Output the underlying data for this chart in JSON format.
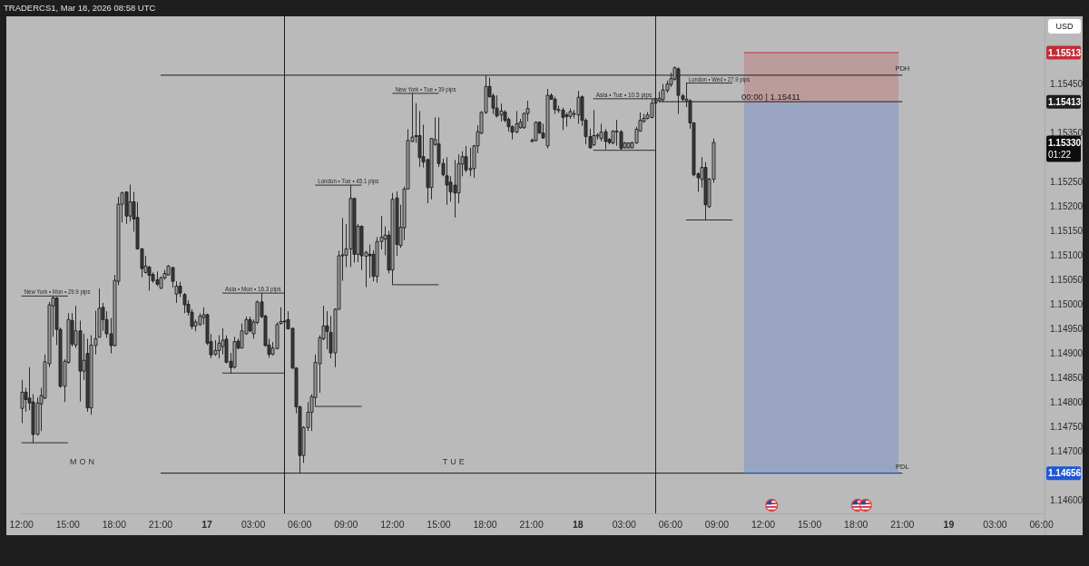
{
  "chart_data": {
    "type": "candlestick",
    "title": "TRADERCS1, Mar 18, 2026 08:58 UTC",
    "ylabel": "USD",
    "xlim": [
      "2026-03-16T11:54",
      "2026-03-19T06:12"
    ],
    "ylim": [
      1.14574,
      1.15587
    ],
    "xticks": [
      {
        "value": "2026-03-16T12:00",
        "label": "12:00"
      },
      {
        "value": "2026-03-16T15:00",
        "label": "15:00"
      },
      {
        "value": "2026-03-16T18:00",
        "label": "18:00"
      },
      {
        "value": "2026-03-16T21:00",
        "label": "21:00"
      },
      {
        "value": "2026-03-17T00:00",
        "label": "17"
      },
      {
        "value": "2026-03-17T03:00",
        "label": "03:00"
      },
      {
        "value": "2026-03-17T06:00",
        "label": "06:00"
      },
      {
        "value": "2026-03-17T09:00",
        "label": "09:00"
      },
      {
        "value": "2026-03-17T12:00",
        "label": "12:00"
      },
      {
        "value": "2026-03-17T15:00",
        "label": "15:00"
      },
      {
        "value": "2026-03-17T18:00",
        "label": "18:00"
      },
      {
        "value": "2026-03-17T21:00",
        "label": "21:00"
      },
      {
        "value": "2026-03-18T00:00",
        "label": "18"
      },
      {
        "value": "2026-03-18T03:00",
        "label": "03:00"
      },
      {
        "value": "2026-03-18T06:00",
        "label": "06:00"
      },
      {
        "value": "2026-03-18T09:00",
        "label": "09:00"
      },
      {
        "value": "2026-03-18T12:00",
        "label": "12:00"
      },
      {
        "value": "2026-03-18T15:00",
        "label": "15:00"
      },
      {
        "value": "2026-03-18T18:00",
        "label": "18:00"
      },
      {
        "value": "2026-03-18T21:00",
        "label": "21:00"
      },
      {
        "value": "2026-03-19T00:00",
        "label": "19"
      },
      {
        "value": "2026-03-19T03:00",
        "label": "03:00"
      },
      {
        "value": "2026-03-19T06:00",
        "label": "06:00"
      }
    ],
    "yticks": [
      {
        "value": 1.146,
        "label": "1.14600"
      },
      {
        "value": 1.147,
        "label": "1.14700"
      },
      {
        "value": 1.1475,
        "label": "1.14750"
      },
      {
        "value": 1.148,
        "label": "1.14800"
      },
      {
        "value": 1.1485,
        "label": "1.14850"
      },
      {
        "value": 1.149,
        "label": "1.14900"
      },
      {
        "value": 1.1495,
        "label": "1.14950"
      },
      {
        "value": 1.15,
        "label": "1.15000"
      },
      {
        "value": 1.1505,
        "label": "1.15050"
      },
      {
        "value": 1.151,
        "label": "1.15100"
      },
      {
        "value": 1.1515,
        "label": "1.15150"
      },
      {
        "value": 1.152,
        "label": "1.15200"
      },
      {
        "value": 1.1525,
        "label": "1.15250"
      },
      {
        "value": 1.1535,
        "label": "1.15350"
      },
      {
        "value": 1.1545,
        "label": "1.15450"
      }
    ],
    "series": [
      {
        "type": "line",
        "name": "New York • Mon • 29.9 pips",
        "color": "#2e2e2e",
        "x": [
          "2026-03-16T12:00",
          "2026-03-16T15:00"
        ],
        "values": [
          1.15017,
          1.15017
        ]
      },
      {
        "type": "line",
        "color": "#2e2e2e",
        "x": [
          "2026-03-16T12:00",
          "2026-03-16T15:00"
        ],
        "values": [
          1.14718,
          1.14718
        ]
      },
      {
        "type": "line",
        "name": "Asia • Mon • 16.3 pips",
        "color": "#2e2e2e",
        "x": [
          "2026-03-17T01:00",
          "2026-03-17T05:00"
        ],
        "values": [
          1.15023,
          1.15023
        ]
      },
      {
        "type": "line",
        "color": "#2e2e2e",
        "x": [
          "2026-03-17T01:00",
          "2026-03-17T05:00"
        ],
        "values": [
          1.1486,
          1.1486
        ]
      },
      {
        "type": "line",
        "name": "London • Tue • 45.1 pips",
        "color": "#2e2e2e",
        "x": [
          "2026-03-17T07:00",
          "2026-03-17T10:00"
        ],
        "values": [
          1.15243,
          1.15243
        ]
      },
      {
        "type": "line",
        "color": "#2e2e2e",
        "x": [
          "2026-03-17T07:00",
          "2026-03-17T10:00"
        ],
        "values": [
          1.14792,
          1.14792
        ]
      },
      {
        "type": "line",
        "name": "New York • Tue • 39 pips",
        "color": "#2e2e2e",
        "x": [
          "2026-03-17T12:00",
          "2026-03-17T15:00"
        ],
        "values": [
          1.1543,
          1.1543
        ]
      },
      {
        "type": "line",
        "color": "#2e2e2e",
        "x": [
          "2026-03-17T12:00",
          "2026-03-17T15:00"
        ],
        "values": [
          1.1504,
          1.1504
        ]
      },
      {
        "type": "line",
        "name": "Asia • Tue • 10.5 pips",
        "color": "#2e2e2e",
        "x": [
          "2026-03-18T01:00",
          "2026-03-18T05:00"
        ],
        "values": [
          1.15419,
          1.15419
        ]
      },
      {
        "type": "line",
        "color": "#2e2e2e",
        "x": [
          "2026-03-18T01:00",
          "2026-03-18T05:00"
        ],
        "values": [
          1.15314,
          1.15314
        ]
      },
      {
        "type": "line",
        "name": "London • Wed • 27.9 pips",
        "color": "#2e2e2e",
        "x": [
          "2026-03-18T07:00",
          "2026-03-18T10:00"
        ],
        "values": [
          1.15451,
          1.15451
        ]
      },
      {
        "type": "line",
        "color": "#2e2e2e",
        "x": [
          "2026-03-18T07:00",
          "2026-03-18T10:00"
        ],
        "values": [
          1.15172,
          1.15172
        ]
      },
      {
        "type": "line",
        "name": "PDH",
        "color": "#1e1e1e",
        "x": [
          "2026-03-16T21:00",
          "2026-03-18T21:00"
        ],
        "values": [
          1.15467,
          1.15467
        ]
      },
      {
        "type": "line",
        "name": "PDL",
        "color": "#1e1e1e",
        "x": [
          "2026-03-16T21:00",
          "2026-03-18T21:00"
        ],
        "values": [
          1.14656,
          1.14656
        ]
      },
      {
        "type": "line",
        "color": "#c42b38",
        "x": [
          "2026-03-18T10:45",
          "2026-03-18T20:45"
        ],
        "values": [
          1.15513,
          1.15513
        ],
        "lower": [
          1.15411,
          1.15411
        ],
        "upper": [
          1.15513,
          1.15513
        ]
      },
      {
        "type": "line",
        "color": "#1f56d6",
        "x": [
          "2026-03-18T10:45",
          "2026-03-18T20:45"
        ],
        "values": [
          1.14656,
          1.14656
        ],
        "lower": [
          1.14656,
          1.14656
        ],
        "upper": [
          1.15411,
          1.15411
        ]
      },
      {
        "type": "line",
        "color": "#1e1e1e",
        "x": [
          "2026-03-18T05:15",
          "2026-03-18T21:00"
        ],
        "values": [
          1.15413,
          1.15413
        ]
      },
      {
        "color": "#1c1c1c",
        "x": [
          "2026-03-16T12:00",
          "2026-03-16T12:15",
          "2026-03-16T12:30",
          "2026-03-16T12:45",
          "2026-03-16T13:00",
          "2026-03-16T13:15",
          "2026-03-16T13:30",
          "2026-03-16T13:45",
          "2026-03-16T14:00",
          "2026-03-16T14:15",
          "2026-03-16T14:30",
          "2026-03-16T14:45",
          "2026-03-16T15:00",
          "2026-03-16T15:15",
          "2026-03-16T15:30",
          "2026-03-16T15:45",
          "2026-03-16T16:00",
          "2026-03-16T16:15",
          "2026-03-16T16:30",
          "2026-03-16T16:45",
          "2026-03-16T17:00",
          "2026-03-16T17:15",
          "2026-03-16T17:30",
          "2026-03-16T17:45",
          "2026-03-16T18:00",
          "2026-03-16T18:15",
          "2026-03-16T18:30",
          "2026-03-16T18:45",
          "2026-03-16T19:00",
          "2026-03-16T19:15",
          "2026-03-16T19:30",
          "2026-03-16T19:45",
          "2026-03-16T20:00",
          "2026-03-16T20:15",
          "2026-03-16T20:30",
          "2026-03-16T20:45",
          "2026-03-16T21:00",
          "2026-03-16T21:15",
          "2026-03-16T21:30",
          "2026-03-16T21:45",
          "2026-03-16T22:00",
          "2026-03-16T22:15",
          "2026-03-16T22:30",
          "2026-03-16T22:45",
          "2026-03-16T23:00",
          "2026-03-16T23:15",
          "2026-03-16T23:30",
          "2026-03-16T23:45",
          "2026-03-17T00:00",
          "2026-03-17T00:15",
          "2026-03-17T00:30",
          "2026-03-17T00:45",
          "2026-03-17T01:00",
          "2026-03-17T01:15",
          "2026-03-17T01:30",
          "2026-03-17T01:45",
          "2026-03-17T02:00",
          "2026-03-17T02:15",
          "2026-03-17T02:30",
          "2026-03-17T02:45",
          "2026-03-17T03:00",
          "2026-03-17T03:15",
          "2026-03-17T03:30",
          "2026-03-17T03:45",
          "2026-03-17T04:00",
          "2026-03-17T04:15",
          "2026-03-17T04:30",
          "2026-03-17T04:45",
          "2026-03-17T05:00",
          "2026-03-17T05:15",
          "2026-03-17T05:30",
          "2026-03-17T05:45",
          "2026-03-17T06:00",
          "2026-03-17T06:15",
          "2026-03-17T06:30",
          "2026-03-17T06:45",
          "2026-03-17T07:00",
          "2026-03-17T07:15",
          "2026-03-17T07:30",
          "2026-03-17T07:45",
          "2026-03-17T08:00",
          "2026-03-17T08:15",
          "2026-03-17T08:30",
          "2026-03-17T08:45",
          "2026-03-17T09:00",
          "2026-03-17T09:15",
          "2026-03-17T09:30",
          "2026-03-17T09:45",
          "2026-03-17T10:00",
          "2026-03-17T10:15",
          "2026-03-17T10:30",
          "2026-03-17T10:45",
          "2026-03-17T11:00",
          "2026-03-17T11:15",
          "2026-03-17T11:30",
          "2026-03-17T11:45",
          "2026-03-17T12:00",
          "2026-03-17T12:15",
          "2026-03-17T12:30",
          "2026-03-17T12:45",
          "2026-03-17T13:00",
          "2026-03-17T13:15",
          "2026-03-17T13:30",
          "2026-03-17T13:45",
          "2026-03-17T14:00",
          "2026-03-17T14:15",
          "2026-03-17T14:30",
          "2026-03-17T14:45",
          "2026-03-17T15:00",
          "2026-03-17T15:15",
          "2026-03-17T15:30",
          "2026-03-17T15:45",
          "2026-03-17T16:00",
          "2026-03-17T16:15",
          "2026-03-17T16:30",
          "2026-03-17T16:45",
          "2026-03-17T17:00",
          "2026-03-17T17:15",
          "2026-03-17T17:30",
          "2026-03-17T17:45",
          "2026-03-17T18:00",
          "2026-03-17T18:15",
          "2026-03-17T18:30",
          "2026-03-17T18:45",
          "2026-03-17T19:00",
          "2026-03-17T19:15",
          "2026-03-17T19:30",
          "2026-03-17T19:45",
          "2026-03-17T20:00",
          "2026-03-17T20:15",
          "2026-03-17T20:30",
          "2026-03-17T20:45",
          "2026-03-17T21:00",
          "2026-03-17T21:15",
          "2026-03-17T21:30",
          "2026-03-17T21:45",
          "2026-03-17T22:00",
          "2026-03-17T22:15",
          "2026-03-17T22:30",
          "2026-03-17T22:45",
          "2026-03-17T23:00",
          "2026-03-17T23:15",
          "2026-03-17T23:30",
          "2026-03-17T23:45",
          "2026-03-18T00:00",
          "2026-03-18T00:15",
          "2026-03-18T00:30",
          "2026-03-18T00:45",
          "2026-03-18T01:00",
          "2026-03-18T01:15",
          "2026-03-18T01:30",
          "2026-03-18T01:45",
          "2026-03-18T02:00",
          "2026-03-18T02:15",
          "2026-03-18T02:30",
          "2026-03-18T02:45",
          "2026-03-18T03:00",
          "2026-03-18T03:15",
          "2026-03-18T03:30",
          "2026-03-18T03:45",
          "2026-03-18T04:00",
          "2026-03-18T04:15",
          "2026-03-18T04:30",
          "2026-03-18T04:45",
          "2026-03-18T05:00",
          "2026-03-18T05:15",
          "2026-03-18T05:30",
          "2026-03-18T05:45",
          "2026-03-18T06:00",
          "2026-03-18T06:15",
          "2026-03-18T06:30",
          "2026-03-18T06:45",
          "2026-03-18T07:00",
          "2026-03-18T07:15",
          "2026-03-18T07:30",
          "2026-03-18T07:45",
          "2026-03-18T08:00",
          "2026-03-18T08:15",
          "2026-03-18T08:30",
          "2026-03-18T08:45"
        ],
        "ohlc": [
          [
            1.14788,
            1.14846,
            1.14758,
            1.14821
          ],
          [
            1.14821,
            1.1483,
            1.14781,
            1.14806
          ],
          [
            1.14809,
            1.14872,
            1.14784,
            1.14799
          ],
          [
            1.14801,
            1.14817,
            1.14718,
            1.14735
          ],
          [
            1.14735,
            1.1481,
            1.14733,
            1.14799
          ],
          [
            1.14797,
            1.1483,
            1.14742,
            1.14814
          ],
          [
            1.14809,
            1.14898,
            1.14807,
            1.14883
          ],
          [
            1.14879,
            1.15005,
            1.14872,
            1.14999
          ],
          [
            1.14997,
            1.15017,
            1.14934,
            1.15013
          ],
          [
            1.15013,
            1.15015,
            1.14917,
            1.14949
          ],
          [
            1.14949,
            1.14953,
            1.1483,
            1.14833
          ],
          [
            1.14833,
            1.14888,
            1.14801,
            1.14884
          ],
          [
            1.14882,
            1.14982,
            1.14879,
            1.14969
          ],
          [
            1.14967,
            1.14982,
            1.14914,
            1.14919
          ],
          [
            1.14917,
            1.14997,
            1.14911,
            1.14946
          ],
          [
            1.14946,
            1.14967,
            1.14802,
            1.14864
          ],
          [
            1.14864,
            1.1494,
            1.14846,
            1.14886
          ],
          [
            1.149,
            1.1493,
            1.14781,
            1.14789
          ],
          [
            1.14789,
            1.14937,
            1.14775,
            1.14917
          ],
          [
            1.14916,
            1.14987,
            1.14898,
            1.1493
          ],
          [
            1.14933,
            1.15032,
            1.14932,
            1.14992
          ],
          [
            1.14994,
            1.15003,
            1.14946,
            1.14969
          ],
          [
            1.14969,
            1.14986,
            1.14932,
            1.1494
          ],
          [
            1.1494,
            1.14972,
            1.149,
            1.14916
          ],
          [
            1.14916,
            1.1506,
            1.14914,
            1.15049
          ],
          [
            1.15047,
            1.15219,
            1.15039,
            1.15204
          ],
          [
            1.15204,
            1.1523,
            1.15167,
            1.15227
          ],
          [
            1.15229,
            1.1523,
            1.15164,
            1.1518
          ],
          [
            1.1518,
            1.15244,
            1.15169,
            1.15209
          ],
          [
            1.15209,
            1.15229,
            1.15148,
            1.15174
          ],
          [
            1.15177,
            1.15209,
            1.15112,
            1.15113
          ],
          [
            1.15113,
            1.15115,
            1.15055,
            1.15073
          ],
          [
            1.15065,
            1.15099,
            1.15063,
            1.15078
          ],
          [
            1.15076,
            1.15078,
            1.15028,
            1.15059
          ],
          [
            1.15061,
            1.15065,
            1.15044,
            1.15048
          ],
          [
            1.1505,
            1.15067,
            1.15037,
            1.15041
          ],
          [
            1.15033,
            1.15057,
            1.15031,
            1.15054
          ],
          [
            1.15054,
            1.1507,
            1.1505,
            1.15063
          ],
          [
            1.1506,
            1.1508,
            1.15059,
            1.15078
          ],
          [
            1.15075,
            1.15076,
            1.15034,
            1.15047
          ],
          [
            1.15021,
            1.15047,
            1.15003,
            1.15037
          ],
          [
            1.15037,
            1.15046,
            1.15015,
            1.15023
          ],
          [
            1.1502,
            1.15023,
            1.14982,
            1.14999
          ],
          [
            1.15,
            1.15008,
            1.14977,
            1.14984
          ],
          [
            1.14984,
            1.1499,
            1.14949,
            1.14955
          ],
          [
            1.14956,
            1.14969,
            1.14945,
            1.14964
          ],
          [
            1.14959,
            1.14982,
            1.14956,
            1.14976
          ],
          [
            1.14973,
            1.14994,
            1.14959,
            1.14979
          ],
          [
            1.14979,
            1.14981,
            1.14917,
            1.14921
          ],
          [
            1.14924,
            1.1494,
            1.1489,
            1.14897
          ],
          [
            1.14898,
            1.14927,
            1.14895,
            1.14906
          ],
          [
            1.14906,
            1.14937,
            1.1489,
            1.14921
          ],
          [
            1.14914,
            1.14951,
            1.14898,
            1.14927
          ],
          [
            1.14929,
            1.14937,
            1.1488,
            1.14882
          ],
          [
            1.14884,
            1.14901,
            1.1486,
            1.14871
          ],
          [
            1.14872,
            1.14934,
            1.14869,
            1.14924
          ],
          [
            1.14925,
            1.1493,
            1.14908,
            1.14911
          ],
          [
            1.14911,
            1.14961,
            1.1491,
            1.14946
          ],
          [
            1.1494,
            1.14975,
            1.14938,
            1.14969
          ],
          [
            1.14969,
            1.14975,
            1.14943,
            1.14946
          ],
          [
            1.1494,
            1.14969,
            1.1493,
            1.14964
          ],
          [
            1.14963,
            1.15008,
            1.14959,
            1.15005
          ],
          [
            1.15005,
            1.15023,
            1.14972,
            1.14975
          ],
          [
            1.14976,
            1.14979,
            1.14914,
            1.14916
          ],
          [
            1.14917,
            1.1493,
            1.14891,
            1.14898
          ],
          [
            1.14898,
            1.14923,
            1.14896,
            1.14911
          ],
          [
            1.1491,
            1.14963,
            1.14908,
            1.14959
          ],
          [
            1.14961,
            1.14994,
            1.14959,
            1.14965
          ],
          [
            1.14965,
            1.14973,
            1.14962,
            1.14966
          ],
          [
            1.14969,
            1.14986,
            1.14949,
            1.1495
          ],
          [
            1.14951,
            1.14953,
            1.14869,
            1.1487
          ],
          [
            1.1487,
            1.14872,
            1.14778,
            1.14791
          ],
          [
            1.14791,
            1.14794,
            1.14656,
            1.14692
          ],
          [
            1.14692,
            1.14752,
            1.14677,
            1.14749
          ],
          [
            1.14749,
            1.14801,
            1.14742,
            1.1478
          ],
          [
            1.1478,
            1.14817,
            1.14742,
            1.14812
          ],
          [
            1.1481,
            1.14898,
            1.14792,
            1.14882
          ],
          [
            1.14879,
            1.14937,
            1.1482,
            1.14932
          ],
          [
            1.1493,
            1.14997,
            1.14927,
            1.14956
          ],
          [
            1.14956,
            1.14986,
            1.14908,
            1.14945
          ],
          [
            1.14943,
            1.14976,
            1.1489,
            1.14901
          ],
          [
            1.14901,
            1.14992,
            1.14872,
            1.1499
          ],
          [
            1.1499,
            1.15109,
            1.14989,
            1.15099
          ],
          [
            1.15099,
            1.15176,
            1.15048,
            1.15101
          ],
          [
            1.151,
            1.15164,
            1.15076,
            1.15113
          ],
          [
            1.15113,
            1.15243,
            1.15076,
            1.15216
          ],
          [
            1.15216,
            1.15217,
            1.15085,
            1.15102
          ],
          [
            1.15102,
            1.15164,
            1.15086,
            1.15159
          ],
          [
            1.15159,
            1.15161,
            1.1507,
            1.15099
          ],
          [
            1.15098,
            1.15109,
            1.15035,
            1.15106
          ],
          [
            1.15102,
            1.15122,
            1.15054,
            1.15099
          ],
          [
            1.15102,
            1.1511,
            1.15047,
            1.15057
          ],
          [
            1.15057,
            1.15137,
            1.15044,
            1.15128
          ],
          [
            1.15128,
            1.1518,
            1.15112,
            1.15137
          ],
          [
            1.15133,
            1.15159,
            1.151,
            1.15141
          ],
          [
            1.15141,
            1.1515,
            1.15063,
            1.1507
          ],
          [
            1.1507,
            1.15227,
            1.1504,
            1.15214
          ],
          [
            1.15217,
            1.1523,
            1.15099,
            1.15122
          ],
          [
            1.1512,
            1.15203,
            1.15115,
            1.15157
          ],
          [
            1.15156,
            1.1524,
            1.15131,
            1.15235
          ],
          [
            1.15235,
            1.15357,
            1.15234,
            1.15334
          ],
          [
            1.15332,
            1.1543,
            1.15331,
            1.15341
          ],
          [
            1.15342,
            1.1541,
            1.15329,
            1.15344
          ],
          [
            1.15344,
            1.15394,
            1.1528,
            1.15299
          ],
          [
            1.15301,
            1.15366,
            1.15279,
            1.1529
          ],
          [
            1.15295,
            1.15297,
            1.15206,
            1.15238
          ],
          [
            1.15238,
            1.15339,
            1.15214,
            1.15338
          ],
          [
            1.15326,
            1.15381,
            1.15323,
            1.15336
          ],
          [
            1.15327,
            1.15381,
            1.1528,
            1.15287
          ],
          [
            1.15287,
            1.15297,
            1.15261,
            1.15264
          ],
          [
            1.15262,
            1.153,
            1.15203,
            1.15243
          ],
          [
            1.15249,
            1.15261,
            1.15209,
            1.15229
          ],
          [
            1.15243,
            1.15294,
            1.15177,
            1.15227
          ],
          [
            1.15227,
            1.15306,
            1.15206,
            1.15287
          ],
          [
            1.15286,
            1.15312,
            1.15261,
            1.15301
          ],
          [
            1.15301,
            1.15323,
            1.15269,
            1.15274
          ],
          [
            1.15274,
            1.15319,
            1.15261,
            1.15277
          ],
          [
            1.15277,
            1.15325,
            1.15258,
            1.15323
          ],
          [
            1.15323,
            1.15365,
            1.15308,
            1.15352
          ],
          [
            1.15349,
            1.15394,
            1.15347,
            1.15391
          ],
          [
            1.15391,
            1.15467,
            1.15388,
            1.15444
          ],
          [
            1.15444,
            1.15462,
            1.15422,
            1.15423
          ],
          [
            1.15425,
            1.1543,
            1.15388,
            1.154
          ],
          [
            1.154,
            1.15426,
            1.15381,
            1.15384
          ],
          [
            1.15386,
            1.15409,
            1.15373,
            1.15394
          ],
          [
            1.15392,
            1.15396,
            1.15371,
            1.15375
          ],
          [
            1.15377,
            1.15381,
            1.15352,
            1.15362
          ],
          [
            1.15362,
            1.15365,
            1.15336,
            1.15351
          ],
          [
            1.15351,
            1.15394,
            1.15349,
            1.15368
          ],
          [
            1.1536,
            1.15378,
            1.15358,
            1.15371
          ],
          [
            1.1536,
            1.15391,
            1.15358,
            1.15389
          ],
          [
            1.15389,
            1.15415,
            1.15373,
            1.15399
          ],
          [
            1.15332,
            1.15338,
            1.1533,
            1.15335
          ],
          [
            1.15334,
            1.15373,
            1.15332,
            1.15371
          ],
          [
            1.15371,
            1.15373,
            1.15348,
            1.15349
          ],
          [
            1.15349,
            1.15368,
            1.15338,
            1.15339
          ],
          [
            1.15323,
            1.15439,
            1.15318,
            1.15426
          ],
          [
            1.15426,
            1.1543,
            1.15417,
            1.15418
          ],
          [
            1.15418,
            1.15423,
            1.15388,
            1.15397
          ],
          [
            1.15395,
            1.15405,
            1.1539,
            1.15397
          ],
          [
            1.15396,
            1.15401,
            1.15355,
            1.15381
          ],
          [
            1.15386,
            1.15391,
            1.15362,
            1.15383
          ],
          [
            1.15383,
            1.15399,
            1.15378,
            1.15393
          ],
          [
            1.15388,
            1.15396,
            1.15379,
            1.15389
          ],
          [
            1.15386,
            1.15435,
            1.15368,
            1.15422
          ],
          [
            1.15423,
            1.15426,
            1.15364,
            1.15375
          ],
          [
            1.15375,
            1.15379,
            1.15326,
            1.15342
          ],
          [
            1.15342,
            1.15358,
            1.15318,
            1.15319
          ],
          [
            1.15325,
            1.15396,
            1.15323,
            1.15344
          ],
          [
            1.15343,
            1.15349,
            1.15336,
            1.15345
          ],
          [
            1.15338,
            1.15368,
            1.15332,
            1.15351
          ],
          [
            1.15352,
            1.15357,
            1.15316,
            1.15332
          ],
          [
            1.15336,
            1.15339,
            1.15326,
            1.1533
          ],
          [
            1.15329,
            1.15355,
            1.15326,
            1.15353
          ],
          [
            1.15351,
            1.15376,
            1.15323,
            1.15353
          ],
          [
            1.15352,
            1.15355,
            1.15314,
            1.15318
          ],
          [
            1.15319,
            1.15331,
            1.15318,
            1.15329
          ],
          [
            1.15319,
            1.1533,
            1.15318,
            1.15329
          ],
          [
            1.15319,
            1.15332,
            1.15318,
            1.15329
          ],
          [
            1.15329,
            1.15362,
            1.15327,
            1.15357
          ],
          [
            1.15353,
            1.15391,
            1.15352,
            1.15375
          ],
          [
            1.15373,
            1.15388,
            1.1537,
            1.15379
          ],
          [
            1.15379,
            1.15392,
            1.15377,
            1.15386
          ],
          [
            1.15381,
            1.15419,
            1.15379,
            1.1541
          ],
          [
            1.1541,
            1.1542,
            1.15407,
            1.15419
          ],
          [
            1.15415,
            1.15433,
            1.15413,
            1.1542
          ],
          [
            1.15417,
            1.15449,
            1.15413,
            1.15437
          ],
          [
            1.15436,
            1.15456,
            1.15431,
            1.15449
          ],
          [
            1.15448,
            1.15472,
            1.15443,
            1.1546
          ],
          [
            1.15459,
            1.15485,
            1.15456,
            1.15482
          ],
          [
            1.1548,
            1.15483,
            1.15388,
            1.15426
          ],
          [
            1.15425,
            1.15429,
            1.15414,
            1.15418
          ],
          [
            1.15415,
            1.15451,
            1.15402,
            1.15418
          ],
          [
            1.15415,
            1.15418,
            1.15358,
            1.1537
          ],
          [
            1.1537,
            1.15371,
            1.15261,
            1.15264
          ],
          [
            1.15266,
            1.15269,
            1.15229,
            1.15258
          ],
          [
            1.15255,
            1.153,
            1.15238,
            1.15279
          ],
          [
            1.15279,
            1.1529,
            1.15172,
            1.15203
          ],
          [
            1.15199,
            1.15258,
            1.15196,
            1.15255
          ],
          [
            1.15255,
            1.15338,
            1.15248,
            1.1533
          ]
        ],
        "colors": [
          "#9e9e9e",
          "#3a3a3a",
          "#3a3a3a",
          "#3a3a3a",
          "#9e9e9e",
          "#9e9e9e",
          "#9e9e9e",
          "#9e9e9e",
          "#9e9e9e",
          "#3a3a3a",
          "#3a3a3a",
          "#9e9e9e",
          "#9e9e9e",
          "#3a3a3a",
          "#9e9e9e",
          "#3a3a3a",
          "#9e9e9e",
          "#3a3a3a",
          "#9e9e9e",
          "#9e9e9e",
          "#9e9e9e",
          "#3a3a3a",
          "#3a3a3a",
          "#3a3a3a",
          "#9e9e9e",
          "#9e9e9e",
          "#9e9e9e",
          "#3a3a3a",
          "#9e9e9e",
          "#3a3a3a",
          "#3a3a3a",
          "#3a3a3a",
          "#9e9e9e",
          "#3a3a3a",
          "#3a3a3a",
          "#3a3a3a",
          "#9e9e9e",
          "#9e9e9e",
          "#9e9e9e",
          "#3a3a3a",
          "#9e9e9e",
          "#3a3a3a",
          "#3a3a3a",
          "#3a3a3a",
          "#3a3a3a",
          "#9e9e9e",
          "#9e9e9e",
          "#9e9e9e",
          "#3a3a3a",
          "#3a3a3a",
          "#9e9e9e",
          "#9e9e9e",
          "#9e9e9e",
          "#3a3a3a",
          "#3a3a3a",
          "#9e9e9e",
          "#3a3a3a",
          "#9e9e9e",
          "#9e9e9e",
          "#3a3a3a",
          "#9e9e9e",
          "#9e9e9e",
          "#3a3a3a",
          "#3a3a3a",
          "#3a3a3a",
          "#9e9e9e",
          "#9e9e9e",
          "#9e9e9e",
          "#9e9e9e",
          "#3a3a3a",
          "#3a3a3a",
          "#3a3a3a",
          "#3a3a3a",
          "#9e9e9e",
          "#9e9e9e",
          "#9e9e9e",
          "#9e9e9e",
          "#9e9e9e",
          "#9e9e9e",
          "#3a3a3a",
          "#3a3a3a",
          "#9e9e9e",
          "#9e9e9e",
          "#9e9e9e",
          "#9e9e9e",
          "#9e9e9e",
          "#3a3a3a",
          "#9e9e9e",
          "#3a3a3a",
          "#9e9e9e",
          "#3a3a3a",
          "#3a3a3a",
          "#9e9e9e",
          "#9e9e9e",
          "#9e9e9e",
          "#3a3a3a",
          "#9e9e9e",
          "#3a3a3a",
          "#9e9e9e",
          "#9e9e9e",
          "#9e9e9e",
          "#9e9e9e",
          "#9e9e9e",
          "#3a3a3a",
          "#3a3a3a",
          "#3a3a3a",
          "#9e9e9e",
          "#9e9e9e",
          "#3a3a3a",
          "#3a3a3a",
          "#3a3a3a",
          "#3a3a3a",
          "#3a3a3a",
          "#9e9e9e",
          "#9e9e9e",
          "#3a3a3a",
          "#9e9e9e",
          "#9e9e9e",
          "#9e9e9e",
          "#9e9e9e",
          "#9e9e9e",
          "#3a3a3a",
          "#3a3a3a",
          "#3a3a3a",
          "#9e9e9e",
          "#3a3a3a",
          "#3a3a3a",
          "#3a3a3a",
          "#9e9e9e",
          "#9e9e9e",
          "#9e9e9e",
          "#9e9e9e",
          "#9e9e9e",
          "#9e9e9e",
          "#3a3a3a",
          "#3a3a3a",
          "#9e9e9e",
          "#3a3a3a",
          "#3a3a3a",
          "#9e9e9e",
          "#3a3a3a",
          "#3a3a3a",
          "#9e9e9e",
          "#9e9e9e",
          "#9e9e9e",
          "#3a3a3a",
          "#3a3a3a",
          "#3a3a3a",
          "#9e9e9e",
          "#9e9e9e",
          "#9e9e9e",
          "#3a3a3a",
          "#3a3a3a",
          "#9e9e9e",
          "#9e9e9e",
          "#3a3a3a",
          "#9e9e9e",
          "#9e9e9e",
          "#9e9e9e",
          "#9e9e9e",
          "#9e9e9e",
          "#9e9e9e",
          "#9e9e9e",
          "#9e9e9e",
          "#9e9e9e",
          "#9e9e9e",
          "#9e9e9e",
          "#9e9e9e",
          "#9e9e9e",
          "#9e9e9e",
          "#3a3a3a",
          "#3a3a3a",
          "#9e9e9e",
          "#3a3a3a",
          "#3a3a3a",
          "#3a3a3a",
          "#9e9e9e",
          "#3a3a3a",
          "#9e9e9e",
          "#9e9e9e"
        ]
      }
    ],
    "ref_lines": [
      {
        "axis": "x",
        "value": "2026-03-17T05:00",
        "color": "#1e1e1e",
        "line_style": "solid"
      },
      {
        "axis": "x",
        "value": "2026-03-18T05:00",
        "color": "#1e1e1e",
        "line_style": "solid"
      }
    ],
    "annotations": [
      {
        "text": "1.15513",
        "y": 1.15513
      },
      {
        "text": "1.15413",
        "y": 1.15413
      },
      {
        "text": "1.14656",
        "y": 1.14656
      },
      "MON",
      "TUE",
      "1.15330\n01:22",
      {
        "text": "00:00 | 1.15411",
        "x": "2026-03-18T12:30",
        "y": 1.15411
      }
    ]
  }
}
